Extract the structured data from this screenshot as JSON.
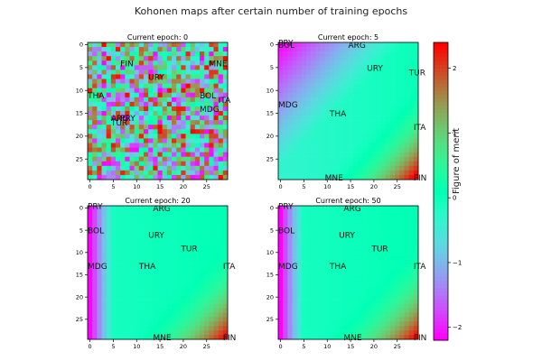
{
  "figure": {
    "title": "Kohonen maps after certain number of training epochs",
    "colorbar": {
      "label": "Figure of merit",
      "ticks": [
        2,
        1,
        0,
        -1,
        -2
      ],
      "range": [
        -2.2,
        2.4
      ],
      "colormap": "rainbow"
    }
  },
  "chart_data": [
    {
      "type": "heatmap",
      "title": "Current epoch: 0",
      "grid_size": 30,
      "pattern": "random",
      "xticks": [
        0,
        5,
        10,
        15,
        20,
        25
      ],
      "yticks": [
        0,
        5,
        10,
        15,
        20,
        25
      ],
      "annotations": [
        {
          "label": "FIN",
          "x": 7,
          "y": 4
        },
        {
          "label": "MNE",
          "x": 26,
          "y": 4
        },
        {
          "label": "URY",
          "x": 13,
          "y": 7
        },
        {
          "label": "THA",
          "x": 0,
          "y": 11
        },
        {
          "label": "BOL",
          "x": 24,
          "y": 11
        },
        {
          "label": "ITA",
          "x": 28,
          "y": 12
        },
        {
          "label": "MDG",
          "x": 24,
          "y": 14
        },
        {
          "label": "ARG",
          "x": 5,
          "y": 16
        },
        {
          "label": "PRY",
          "x": 7,
          "y": 16
        },
        {
          "label": "TUR",
          "x": 5,
          "y": 17
        }
      ]
    },
    {
      "type": "heatmap",
      "title": "Current epoch: 5",
      "grid_size": 30,
      "pattern": "gradient",
      "xticks": [
        0,
        5,
        10,
        15,
        20,
        25
      ],
      "yticks": [
        0,
        5,
        10,
        15,
        20,
        25
      ],
      "annotations": [
        {
          "label": "BOL",
          "x": 0,
          "y": 0
        },
        {
          "label": "PRY",
          "x": 0,
          "y": -0.5
        },
        {
          "label": "ARG",
          "x": 15,
          "y": 0
        },
        {
          "label": "URY",
          "x": 19,
          "y": 5
        },
        {
          "label": "TUR",
          "x": 28,
          "y": 6
        },
        {
          "label": "MDG",
          "x": 0,
          "y": 13
        },
        {
          "label": "THA",
          "x": 11,
          "y": 15
        },
        {
          "label": "ITA",
          "x": 29,
          "y": 18
        },
        {
          "label": "MNE",
          "x": 10,
          "y": 29
        },
        {
          "label": "FIN",
          "x": 29,
          "y": 29
        }
      ]
    },
    {
      "type": "heatmap",
      "title": "Current epoch: 20",
      "grid_size": 30,
      "pattern": "gradient",
      "xticks": [
        0,
        5,
        10,
        15,
        20,
        25
      ],
      "yticks": [
        0,
        5,
        10,
        15,
        20,
        25
      ],
      "annotations": [
        {
          "label": "PRY",
          "x": 0,
          "y": -0.5
        },
        {
          "label": "ARG",
          "x": 14,
          "y": 0
        },
        {
          "label": "BOL",
          "x": 0,
          "y": 5
        },
        {
          "label": "URY",
          "x": 13,
          "y": 6
        },
        {
          "label": "TUR",
          "x": 20,
          "y": 9
        },
        {
          "label": "MDG",
          "x": 0,
          "y": 13
        },
        {
          "label": "THA",
          "x": 11,
          "y": 13
        },
        {
          "label": "ITA",
          "x": 29,
          "y": 13
        },
        {
          "label": "MNE",
          "x": 14,
          "y": 29
        },
        {
          "label": "FIN",
          "x": 29,
          "y": 29
        }
      ]
    },
    {
      "type": "heatmap",
      "title": "Current epoch: 50",
      "grid_size": 30,
      "pattern": "gradient",
      "xticks": [
        0,
        5,
        10,
        15,
        20,
        25
      ],
      "yticks": [
        0,
        5,
        10,
        15,
        20,
        25
      ],
      "annotations": [
        {
          "label": "PRY",
          "x": 0,
          "y": -0.5
        },
        {
          "label": "ARG",
          "x": 14,
          "y": 0
        },
        {
          "label": "BOL",
          "x": 0,
          "y": 5
        },
        {
          "label": "URY",
          "x": 13,
          "y": 6
        },
        {
          "label": "TUR",
          "x": 20,
          "y": 9
        },
        {
          "label": "MDG",
          "x": 0,
          "y": 13
        },
        {
          "label": "THA",
          "x": 11,
          "y": 13
        },
        {
          "label": "ITA",
          "x": 29,
          "y": 13
        },
        {
          "label": "MNE",
          "x": 14,
          "y": 29
        },
        {
          "label": "FIN",
          "x": 29,
          "y": 29
        }
      ]
    }
  ]
}
